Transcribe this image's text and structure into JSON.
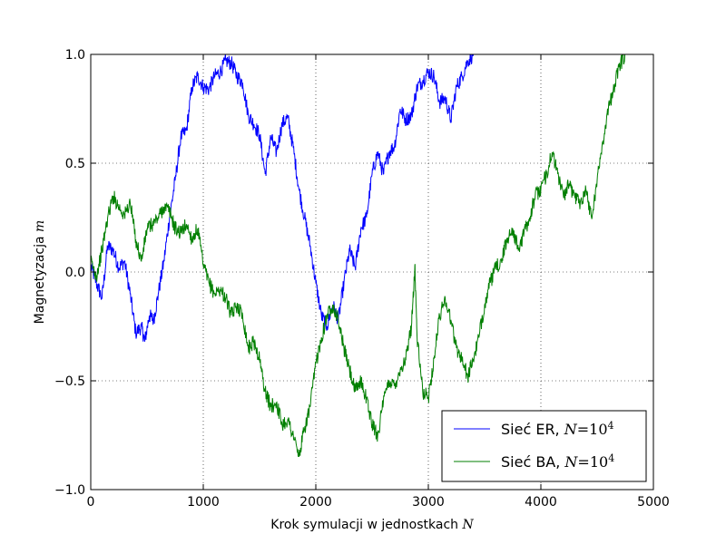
{
  "chart_data": {
    "type": "line",
    "xlabel": "Krok symulacji w jednostkach",
    "xlabel_math": "N",
    "ylabel": "Magnetyzacja",
    "ylabel_math": "m",
    "xlim": [
      0,
      5000
    ],
    "ylim": [
      -1.0,
      1.0
    ],
    "x_ticks": [
      0,
      1000,
      2000,
      3000,
      4000,
      5000
    ],
    "x_tick_labels": [
      "0",
      "1000",
      "2000",
      "3000",
      "4000",
      "5000"
    ],
    "y_ticks": [
      -1.0,
      -0.5,
      0.0,
      0.5,
      1.0
    ],
    "y_tick_labels": [
      "−1.0",
      "−0.5",
      "0.0",
      "0.5",
      "1.0"
    ],
    "grid": true,
    "legend_position": "bottom-right",
    "series": [
      {
        "name": "Sieć ER, N = 10^4",
        "legend_text": "Sieć ER, ",
        "legend_math": "N",
        "legend_eq": "=10",
        "legend_sup": "4",
        "color": "#0000ff",
        "points": [
          [
            0,
            0.03
          ],
          [
            50,
            -0.05
          ],
          [
            100,
            -0.12
          ],
          [
            150,
            0.12
          ],
          [
            200,
            0.1
          ],
          [
            250,
            0.02
          ],
          [
            300,
            0.05
          ],
          [
            350,
            -0.1
          ],
          [
            400,
            -0.28
          ],
          [
            450,
            -0.25
          ],
          [
            480,
            -0.32
          ],
          [
            520,
            -0.2
          ],
          [
            560,
            -0.22
          ],
          [
            600,
            -0.1
          ],
          [
            650,
            0.05
          ],
          [
            700,
            0.25
          ],
          [
            750,
            0.42
          ],
          [
            800,
            0.62
          ],
          [
            850,
            0.65
          ],
          [
            900,
            0.85
          ],
          [
            950,
            0.9
          ],
          [
            1000,
            0.85
          ],
          [
            1050,
            0.84
          ],
          [
            1100,
            0.9
          ],
          [
            1150,
            0.92
          ],
          [
            1200,
            0.97
          ],
          [
            1250,
            0.96
          ],
          [
            1300,
            0.9
          ],
          [
            1350,
            0.87
          ],
          [
            1400,
            0.72
          ],
          [
            1450,
            0.68
          ],
          [
            1500,
            0.63
          ],
          [
            1550,
            0.45
          ],
          [
            1600,
            0.62
          ],
          [
            1650,
            0.55
          ],
          [
            1700,
            0.68
          ],
          [
            1750,
            0.71
          ],
          [
            1800,
            0.57
          ],
          [
            1850,
            0.38
          ],
          [
            1900,
            0.25
          ],
          [
            1950,
            0.12
          ],
          [
            2000,
            -0.05
          ],
          [
            2050,
            -0.2
          ],
          [
            2100,
            -0.25
          ],
          [
            2150,
            -0.15
          ],
          [
            2200,
            -0.22
          ],
          [
            2250,
            -0.05
          ],
          [
            2300,
            0.1
          ],
          [
            2350,
            0.02
          ],
          [
            2400,
            0.2
          ],
          [
            2450,
            0.25
          ],
          [
            2500,
            0.45
          ],
          [
            2550,
            0.55
          ],
          [
            2600,
            0.45
          ],
          [
            2650,
            0.55
          ],
          [
            2700,
            0.58
          ],
          [
            2750,
            0.75
          ],
          [
            2800,
            0.7
          ],
          [
            2850,
            0.72
          ],
          [
            2900,
            0.85
          ],
          [
            2950,
            0.88
          ],
          [
            3000,
            0.92
          ],
          [
            3050,
            0.9
          ],
          [
            3100,
            0.78
          ],
          [
            3150,
            0.8
          ],
          [
            3200,
            0.7
          ],
          [
            3250,
            0.85
          ],
          [
            3300,
            0.9
          ],
          [
            3350,
            0.97
          ],
          [
            3400,
            1.0
          ]
        ]
      },
      {
        "name": "Sieć BA, N = 10^4",
        "legend_text": "Sieć BA, ",
        "legend_math": "N",
        "legend_eq": "=10",
        "legend_sup": "4",
        "color": "#007f00",
        "points": [
          [
            0,
            0.05
          ],
          [
            50,
            -0.02
          ],
          [
            100,
            0.1
          ],
          [
            150,
            0.25
          ],
          [
            200,
            0.35
          ],
          [
            250,
            0.3
          ],
          [
            300,
            0.26
          ],
          [
            350,
            0.32
          ],
          [
            400,
            0.15
          ],
          [
            450,
            0.05
          ],
          [
            500,
            0.2
          ],
          [
            550,
            0.22
          ],
          [
            600,
            0.25
          ],
          [
            650,
            0.3
          ],
          [
            700,
            0.28
          ],
          [
            750,
            0.2
          ],
          [
            800,
            0.18
          ],
          [
            850,
            0.22
          ],
          [
            900,
            0.15
          ],
          [
            950,
            0.2
          ],
          [
            1000,
            0.03
          ],
          [
            1050,
            -0.05
          ],
          [
            1100,
            -0.1
          ],
          [
            1150,
            -0.08
          ],
          [
            1200,
            -0.12
          ],
          [
            1250,
            -0.2
          ],
          [
            1300,
            -0.15
          ],
          [
            1350,
            -0.2
          ],
          [
            1400,
            -0.35
          ],
          [
            1450,
            -0.32
          ],
          [
            1500,
            -0.4
          ],
          [
            1550,
            -0.55
          ],
          [
            1600,
            -0.62
          ],
          [
            1650,
            -0.6
          ],
          [
            1700,
            -0.7
          ],
          [
            1750,
            -0.68
          ],
          [
            1800,
            -0.75
          ],
          [
            1850,
            -0.85
          ],
          [
            1900,
            -0.72
          ],
          [
            1950,
            -0.62
          ],
          [
            2000,
            -0.42
          ],
          [
            2050,
            -0.3
          ],
          [
            2100,
            -0.2
          ],
          [
            2150,
            -0.15
          ],
          [
            2200,
            -0.22
          ],
          [
            2250,
            -0.35
          ],
          [
            2300,
            -0.45
          ],
          [
            2350,
            -0.55
          ],
          [
            2400,
            -0.5
          ],
          [
            2450,
            -0.58
          ],
          [
            2500,
            -0.7
          ],
          [
            2550,
            -0.75
          ],
          [
            2600,
            -0.6
          ],
          [
            2650,
            -0.5
          ],
          [
            2700,
            -0.52
          ],
          [
            2750,
            -0.45
          ],
          [
            2800,
            -0.4
          ],
          [
            2850,
            -0.25
          ],
          [
            2880,
            0.03
          ],
          [
            2900,
            -0.3
          ],
          [
            2950,
            -0.55
          ],
          [
            3000,
            -0.58
          ],
          [
            3050,
            -0.4
          ],
          [
            3100,
            -0.2
          ],
          [
            3150,
            -0.12
          ],
          [
            3200,
            -0.22
          ],
          [
            3250,
            -0.35
          ],
          [
            3300,
            -0.4
          ],
          [
            3350,
            -0.48
          ],
          [
            3400,
            -0.4
          ],
          [
            3450,
            -0.3
          ],
          [
            3500,
            -0.15
          ],
          [
            3550,
            -0.05
          ],
          [
            3600,
            0.02
          ],
          [
            3650,
            0.05
          ],
          [
            3700,
            0.15
          ],
          [
            3750,
            0.2
          ],
          [
            3800,
            0.1
          ],
          [
            3850,
            0.18
          ],
          [
            3900,
            0.25
          ],
          [
            3950,
            0.35
          ],
          [
            4000,
            0.38
          ],
          [
            4050,
            0.45
          ],
          [
            4100,
            0.55
          ],
          [
            4150,
            0.45
          ],
          [
            4200,
            0.35
          ],
          [
            4250,
            0.4
          ],
          [
            4300,
            0.35
          ],
          [
            4350,
            0.32
          ],
          [
            4400,
            0.38
          ],
          [
            4450,
            0.25
          ],
          [
            4500,
            0.42
          ],
          [
            4550,
            0.6
          ],
          [
            4600,
            0.75
          ],
          [
            4650,
            0.85
          ],
          [
            4700,
            0.95
          ],
          [
            4750,
            1.0
          ]
        ]
      }
    ]
  }
}
